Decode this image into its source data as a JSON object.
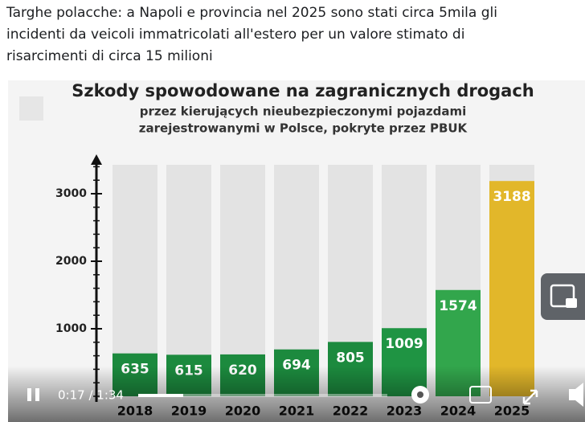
{
  "post": {
    "text_lines": [
      "Targhe polacche: a Napoli e provincia nel 2025 sono stati circa 5mila gli",
      "incidenti da veicoli immatricolati all'estero per un valore stimato di",
      "risarcimenti di circa 15 milioni"
    ]
  },
  "chart_data": {
    "type": "bar",
    "title": "Szkody spowodowane na zagranicznych drogach",
    "subtitle_lines": [
      "przez kierujących nieubezpieczonymi pojazdami",
      "zarejestrowanymi w Polsce, pokryte przez PBUK"
    ],
    "categories": [
      "2018",
      "2019",
      "2020",
      "2021",
      "2022",
      "2023",
      "2024",
      "2025"
    ],
    "values": [
      635,
      615,
      620,
      694,
      805,
      1009,
      1574,
      3188
    ],
    "colors": [
      "#1c8a3e",
      "#1c8a3e",
      "#1c8a3e",
      "#1c8a3e",
      "#1c8a3e",
      "#1f9443",
      "#32a64c",
      "#e2b72a"
    ],
    "ylim": [
      0,
      3500
    ],
    "yticks": [
      1000,
      2000,
      3000
    ]
  },
  "video": {
    "time_display": "0:17 / 1:34"
  }
}
